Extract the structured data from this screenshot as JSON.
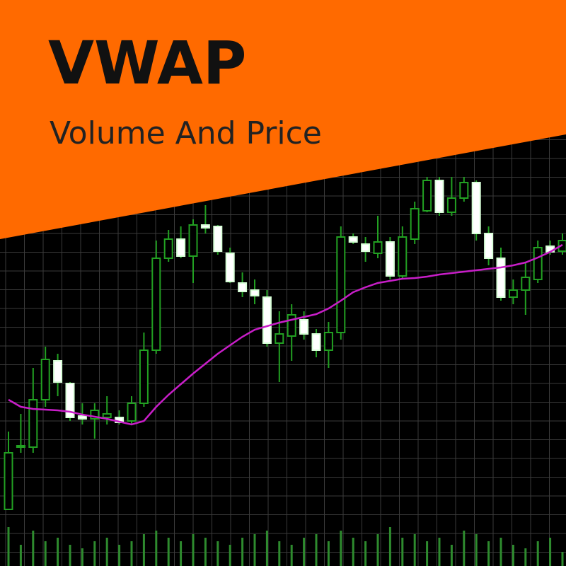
{
  "chart_data": {
    "type": "candlestick",
    "title": "VWAP",
    "subtitle": "Volume And Price",
    "ylim": [
      0,
      80
    ],
    "volume_lim": [
      0,
      100
    ],
    "up_color": "#22a022",
    "down_color": "#ffffff",
    "vwap_color": "#c81ec8",
    "volume_color": "#2e8b2e",
    "open": [
      8,
      16.8,
      16.8,
      23.5,
      29,
      25.8,
      21.2,
      20.8,
      21,
      21,
      20.5,
      23,
      30.5,
      43.5,
      46.2,
      43.8,
      48.2,
      48,
      44.2,
      40,
      39,
      38,
      31.5,
      32.5,
      34.8,
      32.8,
      30.5,
      33,
      46.5,
      45.5,
      44.2,
      45.8,
      41,
      46.2,
      50.2,
      54.5,
      50,
      52,
      54.2,
      47,
      43.5,
      38,
      39,
      40.5,
      45.2,
      44.5
    ],
    "high": [
      19,
      21.5,
      28,
      31,
      30,
      26,
      23,
      23,
      24,
      22,
      24,
      33,
      46,
      47.5,
      48,
      49,
      51,
      48.2,
      45,
      41.5,
      40.5,
      39,
      36,
      37,
      36,
      33.5,
      34.5,
      48,
      47,
      46.5,
      49.5,
      46.5,
      48,
      51.5,
      55,
      55,
      55,
      55,
      54.5,
      48,
      45,
      40.5,
      43,
      46,
      46,
      47
    ],
    "low": [
      8,
      16,
      16,
      22.5,
      24,
      20.5,
      20,
      18,
      20,
      20,
      20,
      22.5,
      30,
      43,
      43.5,
      40,
      47,
      44,
      40,
      38,
      37,
      31,
      26,
      29,
      32,
      29.5,
      28,
      32,
      45.5,
      43,
      43.5,
      40.5,
      40.5,
      45.5,
      50,
      49.5,
      49.5,
      51.5,
      46,
      42.5,
      37.5,
      37,
      35.5,
      40,
      44,
      44
    ],
    "close": [
      16,
      17,
      23.5,
      29.2,
      26,
      21,
      20.8,
      22,
      21.5,
      20.3,
      23,
      30.5,
      43.5,
      46.2,
      43.8,
      48.2,
      47.8,
      44.5,
      40.2,
      38.8,
      38.2,
      31.5,
      32.8,
      35.5,
      32.8,
      30.5,
      33,
      46.5,
      45.8,
      44.5,
      45.8,
      41,
      46.5,
      50.5,
      54.5,
      50,
      52,
      54.2,
      47,
      43.5,
      38,
      39,
      40.8,
      45,
      44.4,
      46
    ],
    "vwap": [
      23.5,
      22.5,
      22.2,
      22.1,
      22,
      21.8,
      21.4,
      21.1,
      20.8,
      20.4,
      20,
      20.5,
      22.5,
      24.2,
      25.7,
      27.2,
      28.6,
      30,
      31.2,
      32.4,
      33.4,
      33.9,
      34.4,
      34.8,
      35.2,
      35.6,
      36.4,
      37.5,
      38.7,
      39.4,
      40,
      40.3,
      40.6,
      40.7,
      40.9,
      41.2,
      41.4,
      41.6,
      41.8,
      42,
      42.2,
      42.5,
      42.9,
      43.6,
      44.4,
      45.4
    ],
    "volume": [
      55,
      30,
      50,
      35,
      40,
      30,
      25,
      35,
      40,
      30,
      35,
      45,
      50,
      40,
      35,
      45,
      40,
      35,
      30,
      40,
      45,
      50,
      35,
      30,
      40,
      45,
      35,
      50,
      40,
      35,
      45,
      55,
      40,
      45,
      35,
      40,
      30,
      50,
      45,
      35,
      40,
      30,
      25,
      35,
      40,
      20
    ]
  }
}
